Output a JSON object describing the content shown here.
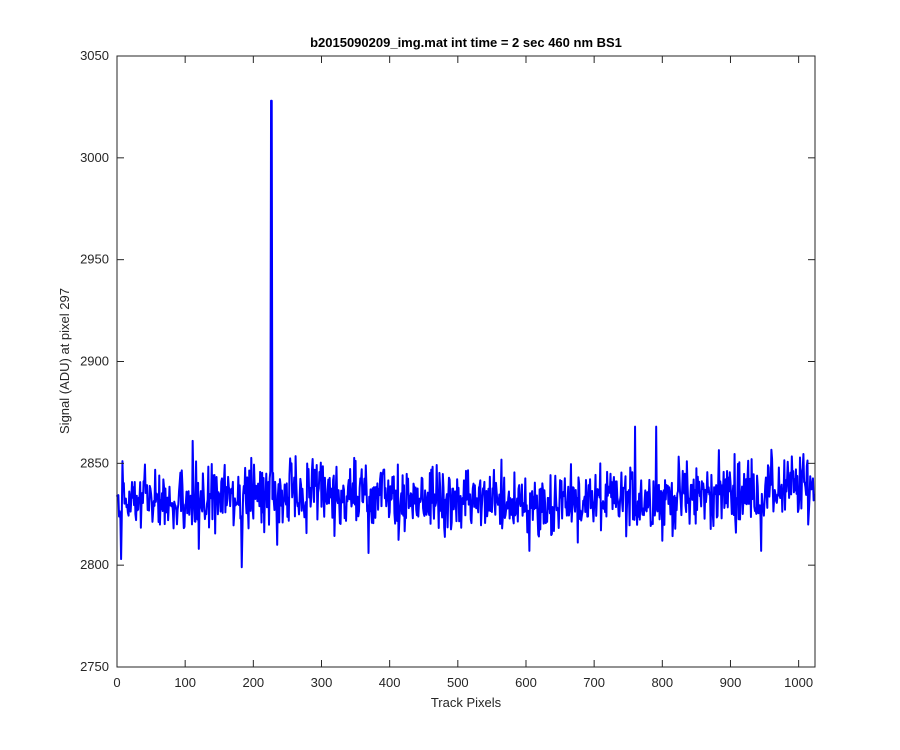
{
  "chart_data": {
    "type": "line",
    "title": "b2015090209_img.mat int time = 2 sec  460 nm BS1",
    "xlabel": "Track Pixels",
    "ylabel": "Signal (ADU) at pixel 297",
    "xlim": [
      0,
      1024
    ],
    "ylim": [
      2750,
      3050
    ],
    "xticks": [
      0,
      100,
      200,
      300,
      400,
      500,
      600,
      700,
      800,
      900,
      1000
    ],
    "yticks": [
      2750,
      2800,
      2850,
      2900,
      2950,
      3000,
      3050
    ],
    "grid": false,
    "legend": "none",
    "series_color": "#0000ff",
    "series": [
      {
        "n_points": 1024,
        "baseline_start": 2830,
        "baseline_end": 2836,
        "noise_amplitude": 9,
        "notable_points": [
          {
            "x": 6,
            "y": 2803
          },
          {
            "x": 111,
            "y": 2861
          },
          {
            "x": 120,
            "y": 2808
          },
          {
            "x": 183,
            "y": 2799
          },
          {
            "x": 226,
            "y": 3028
          },
          {
            "x": 227,
            "y": 3028
          },
          {
            "x": 235,
            "y": 2810
          },
          {
            "x": 369,
            "y": 2806
          },
          {
            "x": 605,
            "y": 2807
          },
          {
            "x": 760,
            "y": 2868
          },
          {
            "x": 791,
            "y": 2868
          },
          {
            "x": 800,
            "y": 2812
          },
          {
            "x": 945,
            "y": 2807
          }
        ]
      }
    ]
  }
}
